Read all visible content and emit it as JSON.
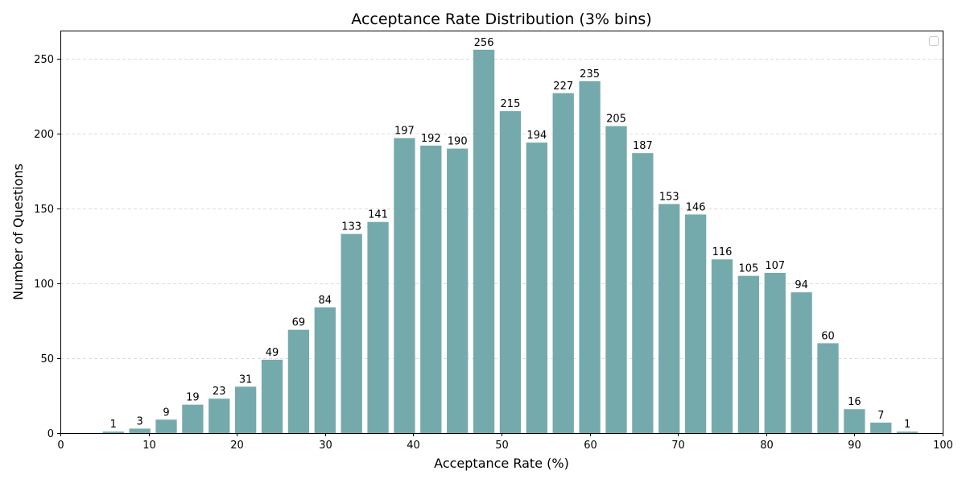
{
  "chart_data": {
    "type": "bar",
    "title": "Acceptance Rate Distribution (3% bins)",
    "xlabel": "Acceptance Rate (%)",
    "ylabel": "Number of Questions",
    "xlim": [
      0,
      100
    ],
    "ylim": [
      0,
      268.8
    ],
    "xticks": [
      0,
      10,
      20,
      30,
      40,
      50,
      60,
      70,
      80,
      90,
      100
    ],
    "yticks": [
      0,
      50,
      100,
      150,
      200,
      250
    ],
    "grid": "y-dashed",
    "legend": "top-right (empty)",
    "bar_color": "#75AAAC",
    "bin_width": 3,
    "bins": [
      {
        "x": 6,
        "value": 1
      },
      {
        "x": 9,
        "value": 3
      },
      {
        "x": 12,
        "value": 9
      },
      {
        "x": 15,
        "value": 19
      },
      {
        "x": 18,
        "value": 23
      },
      {
        "x": 21,
        "value": 31
      },
      {
        "x": 24,
        "value": 49
      },
      {
        "x": 27,
        "value": 69
      },
      {
        "x": 30,
        "value": 84
      },
      {
        "x": 33,
        "value": 133
      },
      {
        "x": 36,
        "value": 141
      },
      {
        "x": 39,
        "value": 197
      },
      {
        "x": 42,
        "value": 192
      },
      {
        "x": 45,
        "value": 190
      },
      {
        "x": 48,
        "value": 256
      },
      {
        "x": 51,
        "value": 215
      },
      {
        "x": 54,
        "value": 194
      },
      {
        "x": 57,
        "value": 227
      },
      {
        "x": 60,
        "value": 235
      },
      {
        "x": 63,
        "value": 205
      },
      {
        "x": 66,
        "value": 187
      },
      {
        "x": 69,
        "value": 153
      },
      {
        "x": 72,
        "value": 146
      },
      {
        "x": 75,
        "value": 116
      },
      {
        "x": 78,
        "value": 105
      },
      {
        "x": 81,
        "value": 107
      },
      {
        "x": 84,
        "value": 94
      },
      {
        "x": 87,
        "value": 60
      },
      {
        "x": 90,
        "value": 16
      },
      {
        "x": 93,
        "value": 7
      },
      {
        "x": 96,
        "value": 1
      }
    ]
  }
}
